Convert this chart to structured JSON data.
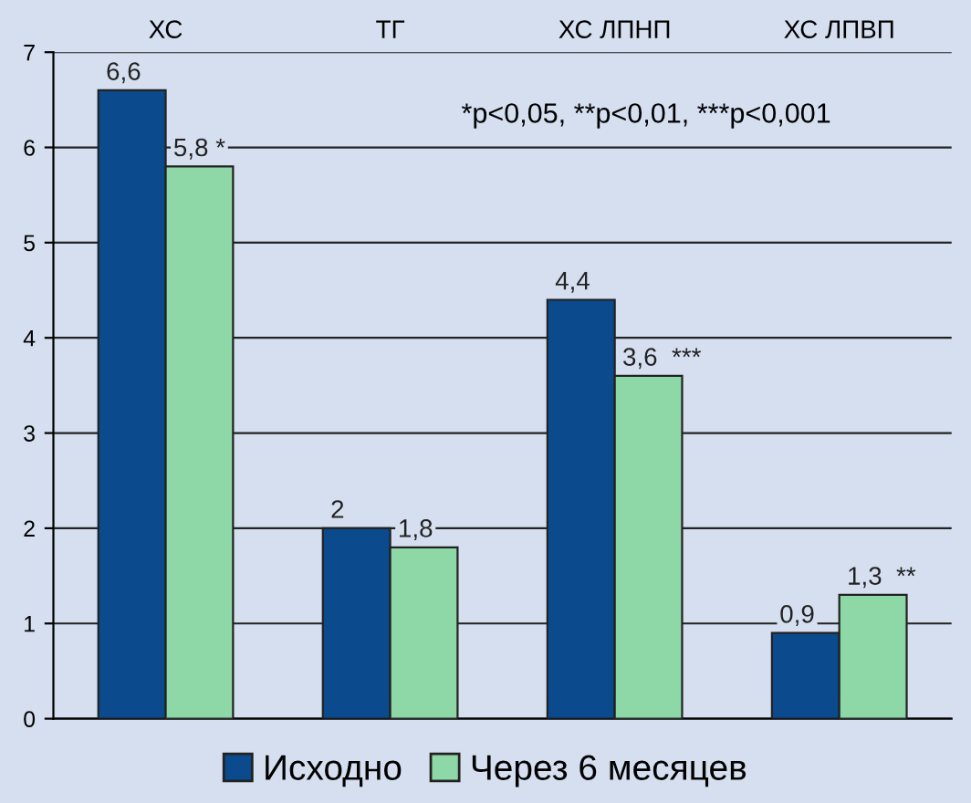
{
  "chart_data": {
    "type": "bar",
    "categories": [
      "ХС",
      "ТГ",
      "ХС ЛПНП",
      "ХС ЛПВП"
    ],
    "series": [
      {
        "name": "Исходно",
        "color": "#0b4a8c",
        "values": [
          6.6,
          2,
          4.4,
          0.9
        ],
        "value_labels": [
          "6,6",
          "2",
          "4,4",
          "0,9"
        ]
      },
      {
        "name": "Через 6 месяцев",
        "color": "#8ed8a8",
        "values": [
          5.8,
          1.8,
          3.6,
          1.3
        ],
        "value_labels": [
          "5,8 *",
          "1,8",
          "3,6  ***",
          "1,3  **"
        ]
      }
    ],
    "ylim": [
      0,
      7
    ],
    "yticks": [
      0,
      1,
      2,
      3,
      4,
      5,
      6,
      7
    ],
    "grid": "y",
    "legend": "bottom",
    "annotations": [
      "*p<0,05, **p<0,01, ***p<0,001"
    ]
  }
}
